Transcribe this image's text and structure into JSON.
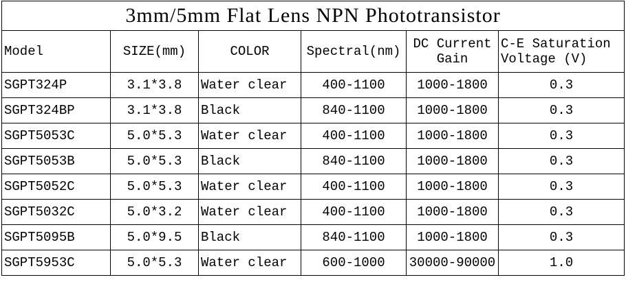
{
  "table": {
    "title": "3mm/5mm Flat Lens NPN Phototransistor",
    "headers": [
      "Model",
      "SIZE(mm)",
      "COLOR",
      "Spectral(nm)",
      "DC Current Gain",
      "C-E Saturation Voltage (V)"
    ],
    "rows": [
      [
        "SGPT324P",
        "3.1*3.8",
        "Water clear",
        "400-1100",
        "1000-1800",
        "0.3"
      ],
      [
        "SGPT324BP",
        "3.1*3.8",
        "Black",
        "840-1100",
        "1000-1800",
        "0.3"
      ],
      [
        "SGPT5053C",
        "5.0*5.3",
        "Water clear",
        "400-1100",
        "1000-1800",
        "0.3"
      ],
      [
        "SGPT5053B",
        "5.0*5.3",
        "Black",
        "840-1100",
        "1000-1800",
        "0.3"
      ],
      [
        "SGPT5052C",
        "5.0*5.3",
        "Water clear",
        "400-1100",
        "1000-1800",
        "0.3"
      ],
      [
        "SGPT5032C",
        "5.0*3.2",
        "Water clear",
        "400-1100",
        "1000-1800",
        "0.3"
      ],
      [
        "SGPT5095B",
        "5.0*9.5",
        "Black",
        "840-1100",
        "1000-1800",
        "0.3"
      ],
      [
        "SGPT5953C",
        "5.0*5.3",
        "Water clear",
        "600-1000",
        "30000-90000",
        "1.0"
      ]
    ]
  }
}
